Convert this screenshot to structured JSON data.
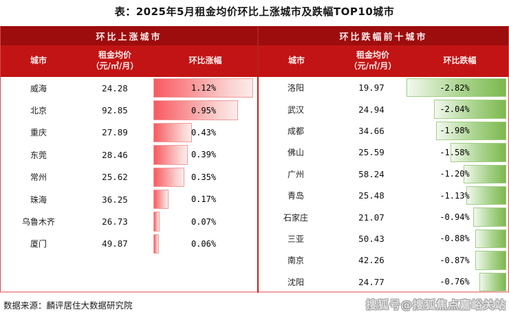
{
  "title": "表：2025年5月租金均价环比上涨城市及跌幅TOP10城市",
  "footer": {
    "source": "数据来源：麟评居住大数据研究院",
    "watermark": "搜狐号@搜狐焦点嘉峪关站"
  },
  "colors": {
    "header_top_red": "#9d0d0e",
    "header_sub_red": "#c21414",
    "rise_bar_red": "#f75a60",
    "fall_bar_green": "#7db84e",
    "table_border": "#cf4a4a"
  },
  "chart_data": {
    "type": "bar",
    "title": "表：2025年5月租金均价环比上涨城市及跌幅TOP10城市",
    "unit": "元/㎡/月",
    "legend_position": "none",
    "panels": [
      {
        "header": "环比上涨城市",
        "direction": "up",
        "bar_color": "#f75a60",
        "columns": {
          "city": "城市",
          "price_l1": "租金均价",
          "price_l2": "（元/㎡/月）",
          "change": "环比涨幅"
        },
        "rows": [
          {
            "city": "威海",
            "price": "24.28",
            "change_pct": 1.12,
            "change_label": "1.12%"
          },
          {
            "city": "北京",
            "price": "92.85",
            "change_pct": 0.95,
            "change_label": "0.95%"
          },
          {
            "city": "重庆",
            "price": "27.89",
            "change_pct": 0.43,
            "change_label": "0.43%"
          },
          {
            "city": "东莞",
            "price": "28.46",
            "change_pct": 0.39,
            "change_label": "0.39%"
          },
          {
            "city": "常州",
            "price": "25.62",
            "change_pct": 0.35,
            "change_label": "0.35%"
          },
          {
            "city": "珠海",
            "price": "36.25",
            "change_pct": 0.17,
            "change_label": "0.17%"
          },
          {
            "city": "乌鲁木齐",
            "price": "26.73",
            "change_pct": 0.07,
            "change_label": "0.07%"
          },
          {
            "city": "厦门",
            "price": "49.87",
            "change_pct": 0.06,
            "change_label": "0.06%"
          }
        ]
      },
      {
        "header": "环比跌幅前十城市",
        "direction": "down",
        "bar_color": "#7db84e",
        "columns": {
          "city": "城市",
          "price_l1": "租金均价",
          "price_l2": "（元/㎡/月）",
          "change": "环比跌幅"
        },
        "rows": [
          {
            "city": "洛阳",
            "price": "19.97",
            "change_pct": -2.82,
            "change_label": "-2.82%"
          },
          {
            "city": "武汉",
            "price": "24.94",
            "change_pct": -2.04,
            "change_label": "-2.04%"
          },
          {
            "city": "成都",
            "price": "34.66",
            "change_pct": -1.98,
            "change_label": "-1.98%"
          },
          {
            "city": "佛山",
            "price": "25.59",
            "change_pct": -1.58,
            "change_label": "-1.58%"
          },
          {
            "city": "广州",
            "price": "58.24",
            "change_pct": -1.2,
            "change_label": "-1.20%"
          },
          {
            "city": "青岛",
            "price": "25.48",
            "change_pct": -1.13,
            "change_label": "-1.13%"
          },
          {
            "city": "石家庄",
            "price": "21.07",
            "change_pct": -0.94,
            "change_label": "-0.94%"
          },
          {
            "city": "三亚",
            "price": "50.43",
            "change_pct": -0.88,
            "change_label": "-0.88%"
          },
          {
            "city": "南京",
            "price": "42.26",
            "change_pct": -0.87,
            "change_label": "-0.87%"
          },
          {
            "city": "沈阳",
            "price": "24.77",
            "change_pct": -0.76,
            "change_label": "-0.76%"
          }
        ]
      }
    ]
  }
}
